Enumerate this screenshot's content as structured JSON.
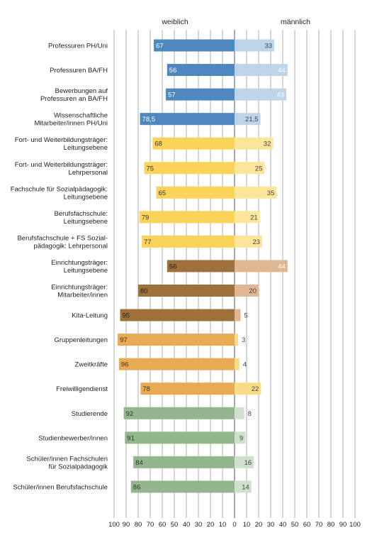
{
  "chart_data": {
    "type": "bar",
    "orientation": "horizontal-diverging",
    "headers": {
      "left": "weiblich",
      "right": "männlich"
    },
    "xlim": [
      -100,
      100
    ],
    "ticks": [
      "100",
      "90",
      "80",
      "70",
      "60",
      "50",
      "40",
      "30",
      "20",
      "10",
      "0",
      "10",
      "20",
      "30",
      "40",
      "50",
      "60",
      "70",
      "80",
      "90",
      "100"
    ],
    "categories": [
      [
        "Professuren PH/Uni"
      ],
      [
        "Professuren BA/FH"
      ],
      [
        "Bewerbungen auf",
        "Professuren an BA/FH"
      ],
      [
        "Wissenschaftliche",
        "Mitarbeiter/innen PH/Uni"
      ],
      [
        "Fort- und Weiterbildungsträger:",
        "Leitungsebene"
      ],
      [
        "Fort- und Weiterbildungsträger:",
        "Lehrpersonal"
      ],
      [
        "Fachschule für Sozialpädagogik:",
        "Leitungsebene"
      ],
      [
        "Berufsfachschule:",
        "Leitungsebene"
      ],
      [
        "Berufsfachschule + FS Sozial-",
        "pädagogik: Lehrpersonal"
      ],
      [
        "Einrichtungsträger:",
        "Leitungsebene"
      ],
      [
        "Einrichtungsträger:",
        "Mitarbeiter/innen"
      ],
      [
        "Kita-Leitung"
      ],
      [
        "Gruppenleitungen"
      ],
      [
        "Zweitkräfte"
      ],
      [
        "Freiwilligendienst"
      ],
      [
        "Studierende"
      ],
      [
        "Studienbewerber/innen"
      ],
      [
        "Schüler/innen Fachschulen",
        "für Sozialpädagogik"
      ],
      [
        "Schüler/innen Berufsfachschule"
      ]
    ],
    "series": [
      {
        "name": "weiblich",
        "values": [
          67,
          56,
          57,
          78.5,
          68,
          75,
          65,
          79,
          77,
          56,
          80,
          95,
          97,
          96,
          78,
          92,
          91,
          84,
          86
        ],
        "labels": [
          "67",
          "56",
          "57",
          "78,5",
          "68",
          "75",
          "65",
          "79",
          "77",
          "56",
          "80",
          "95",
          "97",
          "96",
          "78",
          "92",
          "91",
          "84",
          "86"
        ]
      },
      {
        "name": "männlich",
        "values": [
          33,
          44,
          43,
          21.5,
          32,
          25,
          35,
          21,
          23,
          44,
          20,
          5,
          3,
          4,
          22,
          8,
          9,
          16,
          14
        ],
        "labels": [
          "33",
          "44",
          "43",
          "21,5",
          "32",
          "25",
          "35",
          "21",
          "23",
          "44",
          "20",
          "5",
          "3",
          "4",
          "22",
          "8",
          "9",
          "16",
          "14"
        ]
      }
    ],
    "colors": {
      "female": [
        "#4f87bf",
        "#4f87bf",
        "#4f87bf",
        "#4f87bf",
        "#fad45a",
        "#fad45a",
        "#fad45a",
        "#fad45a",
        "#fad45a",
        "#9e713a",
        "#9e713a",
        "#9e713a",
        "#e8aa52",
        "#e8aa52",
        "#e8aa52",
        "#94b68e",
        "#94b68e",
        "#94b68e",
        "#94b68e"
      ],
      "male": [
        "#bdd4e9",
        "#bdd4e9",
        "#bdd4e9",
        "#bdd4e9",
        "#fbe59a",
        "#fbe59a",
        "#fbe59a",
        "#fbe59a",
        "#fbe59a",
        "#dfb792",
        "#dfb792",
        "#dfb792",
        "#f9dc87",
        "#f9dc87",
        "#f9dc87",
        "#cfe1cc",
        "#cfe1cc",
        "#cfe1cc",
        "#cfe1cc"
      ],
      "female_label": [
        "#ffffff",
        "#ffffff",
        "#ffffff",
        "#ffffff",
        "#333333",
        "#333333",
        "#333333",
        "#333333",
        "#333333",
        "#222222",
        "#222222",
        "#222222",
        "#333333",
        "#333333",
        "#333333",
        "#333333",
        "#333333",
        "#333333",
        "#333333"
      ],
      "male_label": [
        "#444444",
        "#ffffff",
        "#ffffff",
        "#444444",
        "#444444",
        "#444444",
        "#444444",
        "#444444",
        "#444444",
        "#ffffff",
        "#444444",
        "#444444",
        "#444444",
        "#444444",
        "#444444",
        "#444444",
        "#444444",
        "#444444",
        "#444444"
      ]
    },
    "grid": true,
    "legend": "none"
  }
}
